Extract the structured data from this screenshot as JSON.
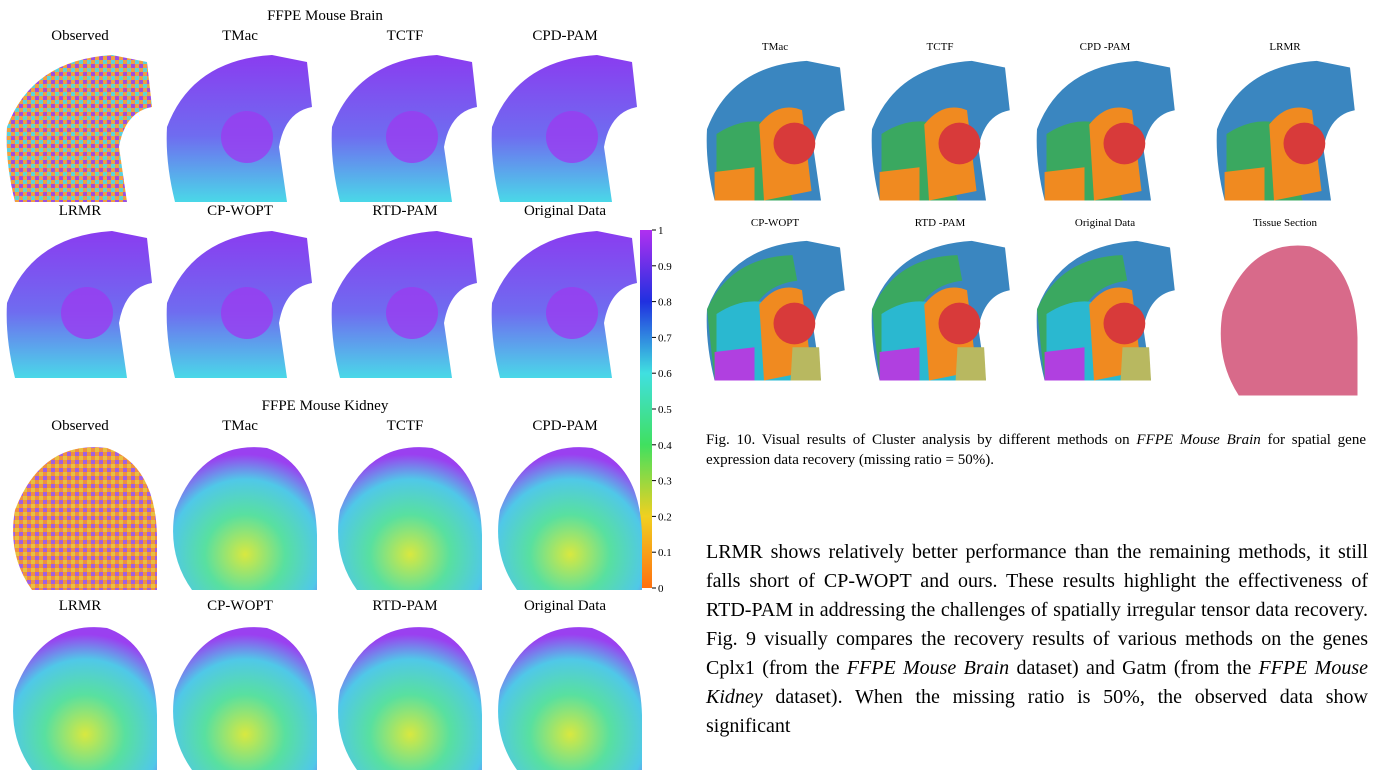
{
  "left_figure": {
    "brain_title": "FFPE Mouse Brain",
    "brain_panels": [
      "Observed",
      "TMac",
      "TCTF",
      "CPD-PAM",
      "LRMR",
      "CP-WOPT",
      "RTD-PAM",
      "Original Data"
    ],
    "kidney_title": "FFPE Mouse Kidney",
    "kidney_panels": [
      "Observed",
      "TMac",
      "TCTF",
      "CPD-PAM",
      "LRMR",
      "CP-WOPT",
      "RTD-PAM",
      "Original Data"
    ],
    "colorbar_ticks": [
      "1",
      "0.9",
      "0.8",
      "0.7",
      "0.6",
      "0.5",
      "0.4",
      "0.3",
      "0.2",
      "0.1",
      "0"
    ]
  },
  "right_figure": {
    "panels": [
      "TMac",
      "TCTF",
      "CPD -PAM",
      "LRMR",
      "CP-WOPT",
      "RTD -PAM",
      "Original Data",
      "Tissue Section"
    ],
    "caption": [
      "Fig. 10.   Visual results of Cluster analysis by different methods on ",
      "FFPE Mouse Brain",
      " for spatial gene expression data recovery (missing ratio = 50%)."
    ]
  },
  "body": [
    "LRMR shows relatively better performance than the remaining methods, it still falls short of CP-WOPT and ours. These results highlight the effectiveness of RTD-PAM in addressing the challenges of spatially irregular tensor data recovery. Fig. 9 visually compares the recovery results of various methods on the genes Cplx1 (from the ",
    "FFPE Mouse Brain",
    " dataset) and Gatm (from the ",
    "FFPE Mouse Kidney",
    " dataset). When the missing ratio is 50%, the observed data show significant"
  ]
}
